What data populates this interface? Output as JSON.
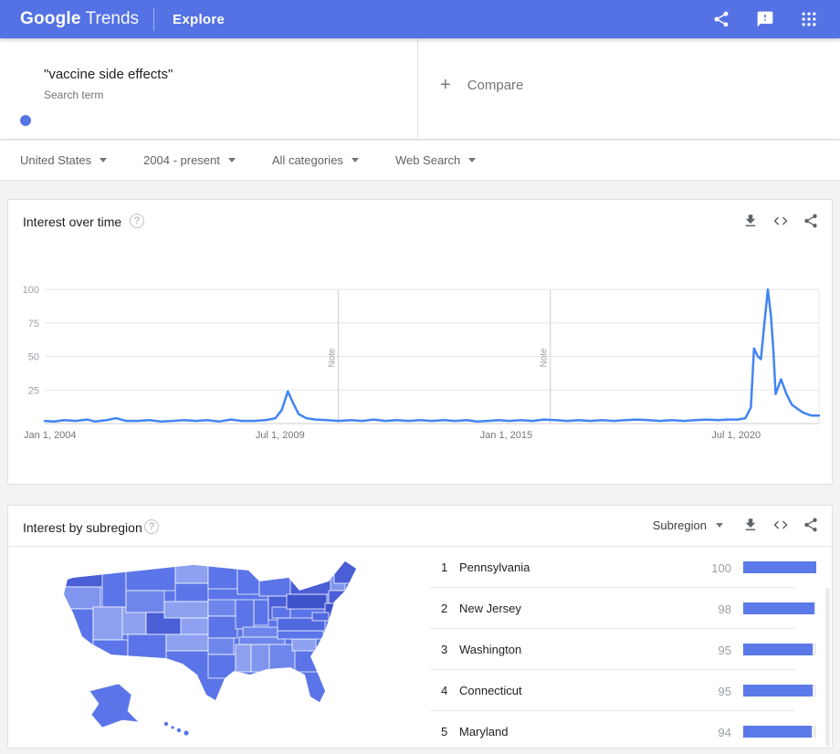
{
  "colors": {
    "appbar_bg": "#5472e4",
    "page_bg": "#f1f3f4",
    "line_blue": "#4285f4",
    "term_dot": "#5674e8",
    "bar_fill": "#5b79e8",
    "map_base": "#5b74e8",
    "map_mid": "#6e86ec",
    "map_light": "#7f95ee",
    "map_lighter": "#8da1f0",
    "map_dark": "#5069e0",
    "map_darker": "#4a5ed6",
    "map_darkest": "#3e52ca",
    "grid_line": "#e6e6e6",
    "axis_line": "#cccccc",
    "text_muted": "#9aa0a6",
    "text_secondary": "#70757a"
  },
  "appbar": {
    "brand_bold": "Google",
    "brand_light": "Trends",
    "page_label": "Explore",
    "icons": [
      "share-icon",
      "feedback-icon",
      "apps-grid-icon"
    ]
  },
  "explore": {
    "term": "\"vaccine side effects\"",
    "term_sub": "Search term",
    "compare_plus": "+",
    "compare_label": "Compare"
  },
  "filters": [
    {
      "label": "United States"
    },
    {
      "label": "2004 - present"
    },
    {
      "label": "All categories"
    },
    {
      "label": "Web Search"
    }
  ],
  "interest_over_time": {
    "title": "Interest over time",
    "help_icon": "?",
    "icons": [
      "download-icon",
      "embed-icon",
      "share-icon"
    ]
  },
  "interest_by_subregion": {
    "title": "Interest by subregion",
    "help_icon": "?",
    "dropdown_label": "Subregion",
    "icons": [
      "download-icon",
      "embed-icon",
      "share-icon"
    ]
  },
  "chart_data": [
    {
      "type": "line",
      "title": "Interest over time",
      "ylabel": "",
      "xlabel": "",
      "ylim": [
        0,
        100
      ],
      "yticks": [
        25,
        50,
        75,
        100
      ],
      "grid": true,
      "xticks": [
        {
          "label": "Jan 1, 2004",
          "t": 0.0
        },
        {
          "label": "Jul 1, 2009",
          "t": 0.304
        },
        {
          "label": "Jan 1, 2015",
          "t": 0.596
        },
        {
          "label": "Jul 1, 2020",
          "t": 0.893
        }
      ],
      "notes": [
        {
          "label": "Note",
          "t": 0.379
        },
        {
          "label": "Note",
          "t": 0.653
        }
      ],
      "series": [
        {
          "name": "\"vaccine side effects\"",
          "color": "#4285f4",
          "points": [
            [
              0,
              2
            ],
            [
              0.012,
              1.5
            ],
            [
              0.025,
              2.5
            ],
            [
              0.04,
              2
            ],
            [
              0.055,
              3
            ],
            [
              0.065,
              1.5
            ],
            [
              0.08,
              2.5
            ],
            [
              0.092,
              4
            ],
            [
              0.105,
              2
            ],
            [
              0.12,
              2
            ],
            [
              0.135,
              2.5
            ],
            [
              0.15,
              1.5
            ],
            [
              0.165,
              2
            ],
            [
              0.18,
              2.5
            ],
            [
              0.195,
              2
            ],
            [
              0.21,
              2.5
            ],
            [
              0.225,
              1.5
            ],
            [
              0.24,
              3
            ],
            [
              0.255,
              2
            ],
            [
              0.27,
              2
            ],
            [
              0.285,
              2.5
            ],
            [
              0.298,
              4
            ],
            [
              0.306,
              10
            ],
            [
              0.314,
              24
            ],
            [
              0.321,
              15
            ],
            [
              0.328,
              7
            ],
            [
              0.338,
              4
            ],
            [
              0.35,
              3
            ],
            [
              0.365,
              2.5
            ],
            [
              0.38,
              2
            ],
            [
              0.395,
              2.5
            ],
            [
              0.41,
              2
            ],
            [
              0.425,
              3
            ],
            [
              0.44,
              2
            ],
            [
              0.455,
              2.5
            ],
            [
              0.47,
              2
            ],
            [
              0.485,
              2.5
            ],
            [
              0.5,
              2
            ],
            [
              0.515,
              2.5
            ],
            [
              0.53,
              2
            ],
            [
              0.545,
              2.5
            ],
            [
              0.558,
              1.5
            ],
            [
              0.572,
              2
            ],
            [
              0.586,
              2.5
            ],
            [
              0.6,
              2
            ],
            [
              0.615,
              2.5
            ],
            [
              0.63,
              2
            ],
            [
              0.645,
              3
            ],
            [
              0.66,
              2.5
            ],
            [
              0.675,
              2
            ],
            [
              0.69,
              2.5
            ],
            [
              0.705,
              2
            ],
            [
              0.72,
              2.5
            ],
            [
              0.735,
              2
            ],
            [
              0.75,
              2.5
            ],
            [
              0.765,
              3
            ],
            [
              0.78,
              2.5
            ],
            [
              0.795,
              2
            ],
            [
              0.81,
              2.5
            ],
            [
              0.825,
              2
            ],
            [
              0.84,
              2.5
            ],
            [
              0.855,
              3
            ],
            [
              0.87,
              2.5
            ],
            [
              0.882,
              3
            ],
            [
              0.895,
              3
            ],
            [
              0.905,
              4
            ],
            [
              0.912,
              12
            ],
            [
              0.916,
              56
            ],
            [
              0.921,
              50
            ],
            [
              0.925,
              48
            ],
            [
              0.929,
              72
            ],
            [
              0.934,
              100
            ],
            [
              0.938,
              80
            ],
            [
              0.941,
              55
            ],
            [
              0.944,
              22
            ],
            [
              0.951,
              33
            ],
            [
              0.958,
              22
            ],
            [
              0.965,
              14
            ],
            [
              0.972,
              11
            ],
            [
              0.98,
              8
            ],
            [
              0.99,
              6
            ],
            [
              1,
              6
            ]
          ]
        }
      ]
    },
    {
      "type": "bar",
      "title": "Interest by subregion",
      "categories": [
        "Pennsylvania",
        "New Jersey",
        "Washington",
        "Connecticut",
        "Maryland"
      ],
      "values": [
        100,
        98,
        95,
        95,
        94
      ],
      "ranks": [
        1,
        2,
        3,
        4,
        5
      ],
      "xlim": [
        0,
        100
      ],
      "bar_color": "#5b79e8"
    }
  ]
}
